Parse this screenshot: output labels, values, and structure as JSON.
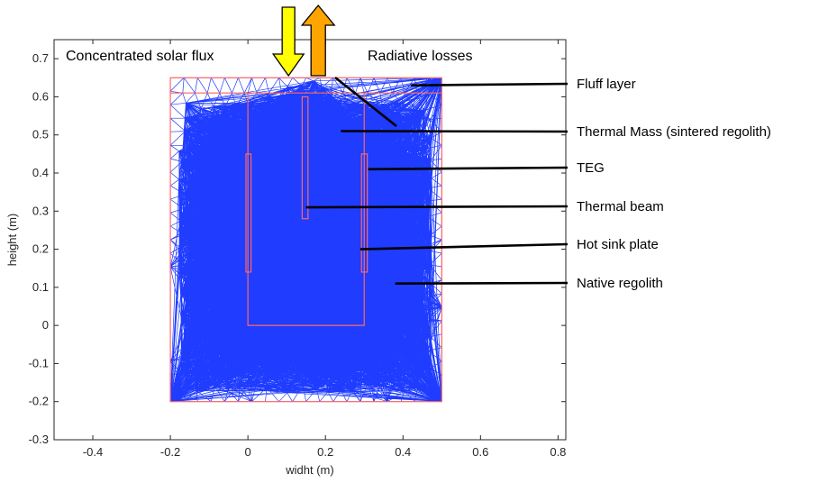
{
  "chart_data": {
    "type": "diagram",
    "xlabel": "widht (m)",
    "ylabel": "height (m)",
    "xlim": [
      -0.5,
      0.82
    ],
    "ylim": [
      -0.3,
      0.75
    ],
    "x_ticks": [
      "-0.4",
      "-0.2",
      "0",
      "0.2",
      "0.4",
      "0.6",
      "0.8"
    ],
    "x_tick_values": [
      -0.4,
      -0.2,
      0,
      0.2,
      0.4,
      0.6,
      0.8
    ],
    "y_ticks": [
      "0.7",
      "0.6",
      "0.5",
      "0.4",
      "0.3",
      "0.2",
      "0.1",
      "0",
      "-0.1",
      "-0.2",
      "-0.3"
    ],
    "y_tick_values": [
      0.7,
      0.6,
      0.5,
      0.4,
      0.3,
      0.2,
      0.1,
      0,
      -0.1,
      -0.2,
      -0.3
    ],
    "in_plot_labels": {
      "solar_flux": "Concentrated solar flux",
      "radiative_losses": "Radiative losses"
    },
    "annotations": [
      {
        "label": "Fluff layer",
        "target": [
          0.42,
          0.63
        ]
      },
      {
        "label": "Thermal Mass (sintered regolith)",
        "target": [
          0.24,
          0.51
        ]
      },
      {
        "label": "TEG",
        "target": [
          0.31,
          0.41
        ]
      },
      {
        "label": "Thermal beam",
        "target": [
          0.15,
          0.31
        ]
      },
      {
        "label": "Hot sink plate",
        "target": [
          0.29,
          0.2
        ]
      },
      {
        "label": "Native regolith",
        "target": [
          0.38,
          0.11
        ]
      }
    ],
    "regions": {
      "outer_box": {
        "x": [
          -0.2,
          0.5
        ],
        "y": [
          -0.2,
          0.65
        ]
      },
      "fluff_layer_bottom": 0.61,
      "thermal_mass": {
        "x": [
          0,
          0.3
        ],
        "y": [
          0,
          0.61
        ]
      },
      "left_plate": {
        "x": [
          -0.005,
          0.008
        ],
        "y": [
          0.14,
          0.45
        ]
      },
      "center_beam": {
        "x": [
          0.14,
          0.155
        ],
        "y": [
          0.28,
          0.6
        ]
      },
      "right_plate": {
        "x": [
          0.293,
          0.308
        ],
        "y": [
          0.14,
          0.45
        ]
      }
    },
    "arrows": [
      {
        "name": "solar-flux-arrow",
        "direction": "down",
        "x": 0.1,
        "color": "#ffff00"
      },
      {
        "name": "radiative-losses-arrow",
        "direction": "up",
        "x": 0.2,
        "color": "#ffa500"
      }
    ],
    "colors": {
      "mesh": "#1f3cff",
      "boundary": "#ff6666",
      "axes": "#262626"
    },
    "grid": false
  }
}
